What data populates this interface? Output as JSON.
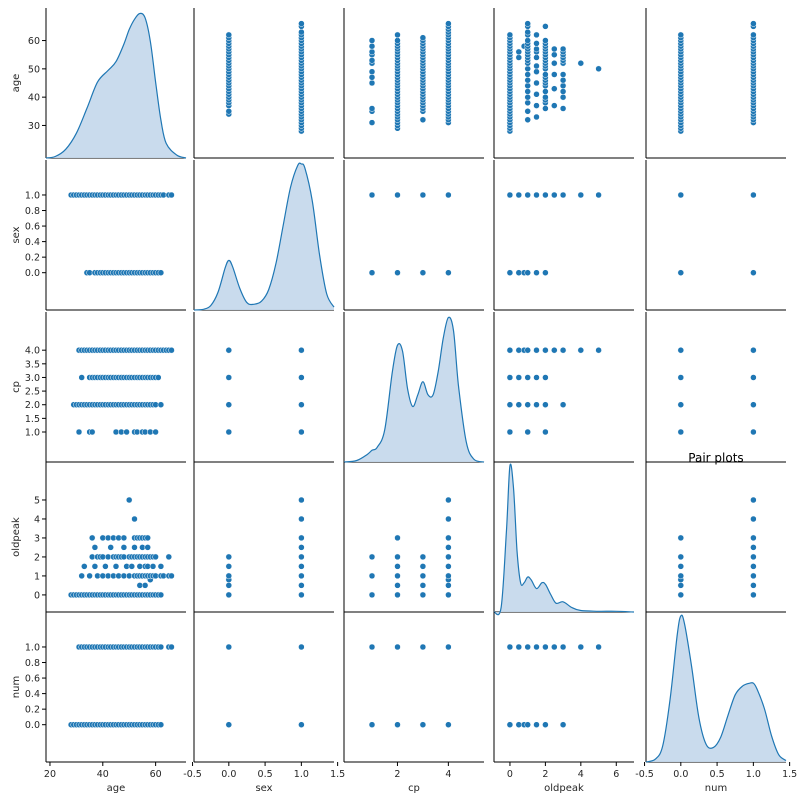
{
  "chart_data": {
    "type": "scatter",
    "title": "Pair plots",
    "variables": [
      "age",
      "sex",
      "cp",
      "oldpeak",
      "num"
    ],
    "colors": {
      "point": "#1f77b4",
      "kde_fill": "#c6d9ec",
      "kde_line": "#1f77b4"
    },
    "axes": {
      "age": {
        "ticks": [
          20,
          40,
          60
        ],
        "tick_labels": [
          "20",
          "40",
          "60"
        ],
        "row_ticks": [
          30,
          40,
          50,
          60
        ],
        "row_tick_labels": [
          "30",
          "40",
          "50",
          "60"
        ],
        "range": [
          18.5,
          71.5
        ]
      },
      "sex": {
        "ticks": [
          -0.5,
          0.0,
          0.5,
          1.0,
          1.5
        ],
        "tick_labels": [
          "-0.5",
          "0.0",
          "0.5",
          "1.0",
          "1.5"
        ],
        "row_ticks": [
          0.0,
          0.2,
          0.4,
          0.6,
          0.8,
          1.0
        ],
        "row_tick_labels": [
          "0.0",
          "0.2",
          "0.4",
          "0.6",
          "0.8",
          "1.0"
        ],
        "range": [
          -0.48,
          1.45
        ]
      },
      "cp": {
        "ticks": [
          2,
          4
        ],
        "tick_labels": [
          "2",
          "4"
        ],
        "row_ticks": [
          1.0,
          1.5,
          2.0,
          2.5,
          3.0,
          3.5,
          4.0
        ],
        "row_tick_labels": [
          "1.0",
          "1.5",
          "2.0",
          "2.5",
          "3.0",
          "3.5",
          "4.0"
        ],
        "range": [
          -0.1,
          5.4
        ]
      },
      "oldpeak": {
        "ticks": [
          0,
          2,
          4,
          6
        ],
        "tick_labels": [
          "0",
          "2",
          "4",
          "6"
        ],
        "row_ticks": [
          0,
          1,
          2,
          3,
          4,
          5
        ],
        "row_tick_labels": [
          "0",
          "1",
          "2",
          "3",
          "4",
          "5"
        ],
        "range": [
          -0.9,
          7.0
        ]
      },
      "num": {
        "ticks": [
          -0.5,
          0.0,
          0.5,
          1.0,
          1.5
        ],
        "tick_labels": [
          "-0.5",
          "0.0",
          "0.5",
          "1.0",
          "1.5"
        ],
        "row_ticks": [
          0.0,
          0.2,
          0.4,
          0.6,
          0.8,
          1.0
        ],
        "row_tick_labels": [
          "0.0",
          "0.2",
          "0.4",
          "0.6",
          "0.8",
          "1.0"
        ],
        "range": [
          -0.48,
          1.45
        ]
      }
    },
    "discrete_values": {
      "sex": [
        0,
        1
      ],
      "cp": [
        1,
        2,
        3,
        4
      ],
      "num": [
        0,
        1
      ],
      "oldpeak": [
        0,
        0.5,
        0.8,
        1,
        1.5,
        2,
        2.5,
        3,
        4,
        5
      ]
    },
    "age_values": [
      28,
      29,
      30,
      31,
      32,
      33,
      34,
      35,
      36,
      37,
      38,
      39,
      40,
      41,
      42,
      43,
      44,
      45,
      46,
      47,
      48,
      49,
      50,
      51,
      52,
      53,
      54,
      55,
      56,
      57,
      58,
      59,
      60,
      61,
      62,
      63,
      64,
      65,
      66
    ],
    "diagonal_kde": {
      "age": {
        "x": [
          18.5,
          22,
          26,
          30,
          34,
          38,
          42,
          45,
          48,
          50,
          52,
          54,
          56,
          58,
          60,
          62,
          64,
          68,
          71.5
        ],
        "density": [
          0,
          0.01,
          0.06,
          0.17,
          0.34,
          0.52,
          0.6,
          0.66,
          0.78,
          0.88,
          0.95,
          0.99,
          0.96,
          0.8,
          0.52,
          0.26,
          0.1,
          0.02,
          0
        ]
      },
      "sex": {
        "x": [
          -0.48,
          -0.35,
          -0.25,
          -0.15,
          -0.05,
          0.0,
          0.05,
          0.15,
          0.25,
          0.35,
          0.45,
          0.55,
          0.65,
          0.75,
          0.85,
          0.95,
          1.0,
          1.05,
          1.15,
          1.25,
          1.35,
          1.45
        ],
        "density": [
          0,
          0.005,
          0.03,
          0.12,
          0.29,
          0.34,
          0.3,
          0.15,
          0.05,
          0.04,
          0.06,
          0.14,
          0.32,
          0.58,
          0.84,
          0.99,
          1.0,
          0.97,
          0.75,
          0.38,
          0.11,
          0.02
        ]
      },
      "cp": {
        "x": [
          -0.1,
          0.4,
          0.8,
          1.0,
          1.2,
          1.5,
          1.8,
          2.0,
          2.2,
          2.4,
          2.6,
          2.8,
          3.0,
          3.2,
          3.4,
          3.6,
          3.8,
          4.0,
          4.2,
          4.4,
          4.7,
          5.0,
          5.4
        ],
        "density": [
          0,
          0.01,
          0.05,
          0.08,
          0.1,
          0.22,
          0.62,
          0.8,
          0.76,
          0.5,
          0.38,
          0.46,
          0.55,
          0.46,
          0.46,
          0.62,
          0.85,
          0.99,
          0.9,
          0.52,
          0.14,
          0.02,
          0
        ]
      },
      "oldpeak": {
        "x": [
          -0.9,
          -0.5,
          -0.2,
          0,
          0.2,
          0.4,
          0.6,
          0.8,
          1.0,
          1.2,
          1.5,
          1.8,
          2.0,
          2.3,
          2.6,
          3.0,
          3.5,
          4.0,
          5.0,
          6.0,
          7.0
        ],
        "density": [
          0,
          0.03,
          0.55,
          1.0,
          0.85,
          0.42,
          0.2,
          0.2,
          0.24,
          0.22,
          0.16,
          0.2,
          0.19,
          0.12,
          0.06,
          0.07,
          0.03,
          0.01,
          0.005,
          0.005,
          0
        ]
      },
      "num": {
        "x": [
          -0.48,
          -0.35,
          -0.25,
          -0.15,
          -0.05,
          0.0,
          0.05,
          0.15,
          0.25,
          0.35,
          0.45,
          0.55,
          0.65,
          0.75,
          0.85,
          0.95,
          1.0,
          1.05,
          1.15,
          1.25,
          1.35,
          1.45
        ],
        "density": [
          0,
          0.02,
          0.11,
          0.42,
          0.87,
          1.0,
          0.95,
          0.65,
          0.3,
          0.12,
          0.1,
          0.17,
          0.32,
          0.46,
          0.52,
          0.54,
          0.54,
          0.5,
          0.37,
          0.18,
          0.05,
          0.01
        ]
      }
    },
    "scatter": {
      "age_vs_sex": {
        "sex0": [
          34,
          35,
          37,
          38,
          39,
          40,
          41,
          42,
          43,
          44,
          45,
          46,
          47,
          48,
          49,
          50,
          51,
          52,
          53,
          54,
          55,
          56,
          57,
          58,
          59,
          60,
          61,
          62
        ],
        "sex1": [
          28,
          29,
          30,
          31,
          32,
          33,
          34,
          35,
          36,
          37,
          38,
          39,
          40,
          41,
          42,
          43,
          44,
          45,
          46,
          47,
          48,
          49,
          50,
          51,
          52,
          53,
          54,
          55,
          56,
          57,
          58,
          59,
          60,
          61,
          62,
          63,
          65,
          66
        ]
      },
      "age_vs_cp": {
        "cp1": [
          31,
          35,
          36,
          45,
          47,
          49,
          52,
          53,
          55,
          56,
          58,
          60
        ],
        "cp2": [
          29,
          30,
          31,
          32,
          33,
          34,
          35,
          36,
          37,
          38,
          39,
          40,
          41,
          42,
          43,
          44,
          45,
          46,
          47,
          48,
          49,
          50,
          51,
          52,
          53,
          54,
          55,
          56,
          57,
          58,
          59,
          60,
          62
        ],
        "cp3": [
          32,
          35,
          36,
          37,
          38,
          39,
          40,
          41,
          42,
          43,
          44,
          45,
          46,
          47,
          48,
          49,
          50,
          51,
          52,
          53,
          54,
          55,
          56,
          57,
          58,
          59,
          60,
          61
        ],
        "cp4": [
          31,
          32,
          33,
          34,
          35,
          36,
          37,
          38,
          39,
          40,
          41,
          42,
          43,
          44,
          45,
          46,
          47,
          48,
          49,
          50,
          51,
          52,
          53,
          54,
          55,
          56,
          57,
          58,
          59,
          60,
          61,
          62,
          63,
          64,
          65,
          66
        ]
      },
      "age_vs_oldpeak": [
        [
          28,
          0
        ],
        [
          29,
          0
        ],
        [
          30,
          0
        ],
        [
          31,
          0
        ],
        [
          32,
          0
        ],
        [
          33,
          0
        ],
        [
          34,
          0
        ],
        [
          35,
          0
        ],
        [
          36,
          0
        ],
        [
          37,
          0
        ],
        [
          38,
          0
        ],
        [
          39,
          0
        ],
        [
          40,
          0
        ],
        [
          41,
          0
        ],
        [
          42,
          0
        ],
        [
          43,
          0
        ],
        [
          44,
          0
        ],
        [
          45,
          0
        ],
        [
          46,
          0
        ],
        [
          47,
          0
        ],
        [
          48,
          0
        ],
        [
          49,
          0
        ],
        [
          50,
          0
        ],
        [
          51,
          0
        ],
        [
          52,
          0
        ],
        [
          53,
          0
        ],
        [
          54,
          0
        ],
        [
          55,
          0
        ],
        [
          56,
          0
        ],
        [
          57,
          0
        ],
        [
          58,
          0
        ],
        [
          59,
          0
        ],
        [
          60,
          0
        ],
        [
          61,
          0
        ],
        [
          62,
          0
        ],
        [
          54,
          0.5
        ],
        [
          56,
          0.5
        ],
        [
          58,
          0.8
        ],
        [
          32,
          1
        ],
        [
          35,
          1
        ],
        [
          38,
          1
        ],
        [
          40,
          1
        ],
        [
          42,
          1
        ],
        [
          44,
          1
        ],
        [
          46,
          1
        ],
        [
          48,
          1
        ],
        [
          50,
          1
        ],
        [
          52,
          1
        ],
        [
          53,
          1
        ],
        [
          54,
          1
        ],
        [
          55,
          1
        ],
        [
          56,
          1
        ],
        [
          57,
          1
        ],
        [
          58,
          1
        ],
        [
          59,
          1
        ],
        [
          60,
          1
        ],
        [
          62,
          1
        ],
        [
          63,
          1
        ],
        [
          65,
          1
        ],
        [
          66,
          1
        ],
        [
          33,
          1.5
        ],
        [
          37,
          1.5
        ],
        [
          41,
          1.5
        ],
        [
          45,
          1.5
        ],
        [
          49,
          1.5
        ],
        [
          51,
          1.5
        ],
        [
          54,
          1.5
        ],
        [
          56,
          1.5
        ],
        [
          57,
          1.5
        ],
        [
          59,
          1.5
        ],
        [
          62,
          1.5
        ],
        [
          36,
          2
        ],
        [
          38,
          2
        ],
        [
          39,
          2
        ],
        [
          40,
          2
        ],
        [
          42,
          2
        ],
        [
          44,
          2
        ],
        [
          45,
          2
        ],
        [
          46,
          2
        ],
        [
          47,
          2
        ],
        [
          48,
          2
        ],
        [
          50,
          2
        ],
        [
          51,
          2
        ],
        [
          52,
          2
        ],
        [
          53,
          2
        ],
        [
          54,
          2
        ],
        [
          55,
          2
        ],
        [
          56,
          2
        ],
        [
          57,
          2
        ],
        [
          58,
          2
        ],
        [
          59,
          2
        ],
        [
          60,
          2
        ],
        [
          65,
          2
        ],
        [
          37,
          2.5
        ],
        [
          43,
          2.5
        ],
        [
          48,
          2.5
        ],
        [
          52,
          2.5
        ],
        [
          55,
          2.5
        ],
        [
          57,
          2.5
        ],
        [
          36,
          3
        ],
        [
          40,
          3
        ],
        [
          42,
          3
        ],
        [
          44,
          3
        ],
        [
          46,
          3
        ],
        [
          48,
          3
        ],
        [
          52,
          3
        ],
        [
          53,
          3
        ],
        [
          54,
          3
        ],
        [
          55,
          3
        ],
        [
          56,
          3
        ],
        [
          57,
          3
        ],
        [
          52,
          4
        ],
        [
          50,
          5
        ]
      ],
      "age_vs_num": {
        "num0": [
          28,
          29,
          30,
          31,
          32,
          33,
          34,
          35,
          36,
          37,
          38,
          39,
          40,
          41,
          42,
          43,
          44,
          45,
          46,
          47,
          48,
          49,
          50,
          51,
          52,
          53,
          54,
          55,
          56,
          57,
          58,
          59,
          60,
          61,
          62
        ],
        "num1": [
          31,
          32,
          33,
          34,
          35,
          36,
          37,
          38,
          39,
          40,
          41,
          42,
          43,
          44,
          45,
          46,
          47,
          48,
          49,
          50,
          51,
          52,
          53,
          54,
          55,
          56,
          57,
          58,
          59,
          60,
          61,
          62,
          65,
          66
        ]
      },
      "sex_vs_cp": [
        [
          0,
          1
        ],
        [
          0,
          2
        ],
        [
          0,
          3
        ],
        [
          0,
          4
        ],
        [
          1,
          1
        ],
        [
          1,
          2
        ],
        [
          1,
          3
        ],
        [
          1,
          4
        ]
      ],
      "sex_vs_oldpeak": [
        [
          0,
          0
        ],
        [
          0,
          0.5
        ],
        [
          0,
          0.8
        ],
        [
          0,
          1
        ],
        [
          0,
          1.5
        ],
        [
          0,
          2
        ],
        [
          1,
          0
        ],
        [
          1,
          0.5
        ],
        [
          1,
          1
        ],
        [
          1,
          1.5
        ],
        [
          1,
          2
        ],
        [
          1,
          2.5
        ],
        [
          1,
          3
        ],
        [
          1,
          4
        ],
        [
          1,
          5
        ]
      ],
      "sex_vs_num": [
        [
          0,
          0
        ],
        [
          0,
          1
        ],
        [
          1,
          0
        ],
        [
          1,
          1
        ]
      ],
      "cp_vs_oldpeak": [
        [
          1,
          0
        ],
        [
          1,
          1
        ],
        [
          1,
          2
        ],
        [
          2,
          0
        ],
        [
          2,
          0.5
        ],
        [
          2,
          1
        ],
        [
          2,
          1.5
        ],
        [
          2,
          2
        ],
        [
          2,
          3
        ],
        [
          3,
          0
        ],
        [
          3,
          0.5
        ],
        [
          3,
          1
        ],
        [
          3,
          1.5
        ],
        [
          3,
          2
        ],
        [
          4,
          0
        ],
        [
          4,
          0.5
        ],
        [
          4,
          0.8
        ],
        [
          4,
          1
        ],
        [
          4,
          1.5
        ],
        [
          4,
          2
        ],
        [
          4,
          2.5
        ],
        [
          4,
          3
        ],
        [
          4,
          4
        ],
        [
          4,
          5
        ]
      ],
      "cp_vs_num": [
        [
          1,
          0
        ],
        [
          1,
          1
        ],
        [
          2,
          0
        ],
        [
          2,
          1
        ],
        [
          3,
          0
        ],
        [
          3,
          1
        ],
        [
          4,
          0
        ],
        [
          4,
          1
        ]
      ],
      "oldpeak_vs_num": {
        "num0": [
          0,
          0.5,
          0.8,
          1,
          1.5,
          2,
          3
        ],
        "num1": [
          0,
          0.5,
          1,
          1.5,
          2,
          2.5,
          3,
          4,
          5
        ]
      }
    }
  }
}
